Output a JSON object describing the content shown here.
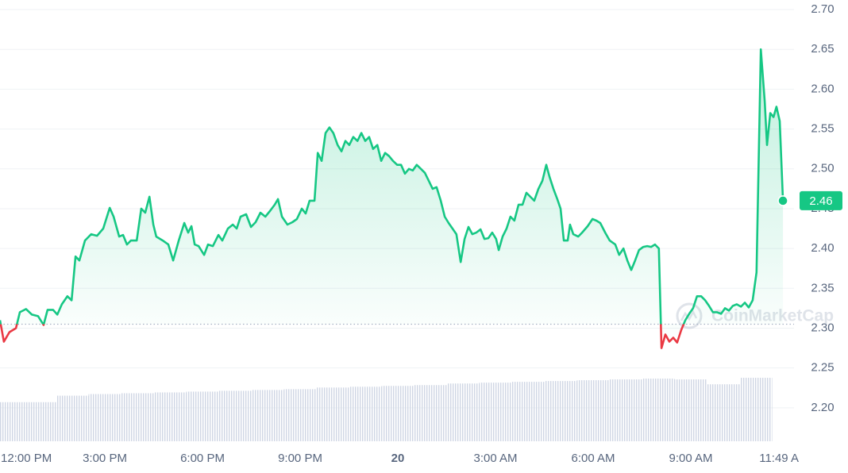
{
  "chart_data": {
    "type": "line",
    "x": [
      11.78,
      11.9,
      12.07,
      12.27,
      12.39,
      12.58,
      12.76,
      12.95,
      13.12,
      13.24,
      13.41,
      13.54,
      13.68,
      13.85,
      13.98,
      14.1,
      14.22,
      14.39,
      14.58,
      14.76,
      14.95,
      15.15,
      15.27,
      15.44,
      15.56,
      15.68,
      15.8,
      15.98,
      16.12,
      16.24,
      16.37,
      16.49,
      16.58,
      16.78,
      16.95,
      17.1,
      17.27,
      17.44,
      17.56,
      17.66,
      17.76,
      17.88,
      18.05,
      18.17,
      18.32,
      18.49,
      18.61,
      18.78,
      18.93,
      19.05,
      19.17,
      19.34,
      19.49,
      19.63,
      19.78,
      19.93,
      20.07,
      20.22,
      20.32,
      20.44,
      20.61,
      20.76,
      20.9,
      21.05,
      21.17,
      21.29,
      21.44,
      21.54,
      21.66,
      21.78,
      21.9,
      22.02,
      22.15,
      22.27,
      22.39,
      22.51,
      22.63,
      22.76,
      22.88,
      23.0,
      23.12,
      23.24,
      23.37,
      23.49,
      23.61,
      23.73,
      23.85,
      23.98,
      24.1,
      24.22,
      24.34,
      24.46,
      24.58,
      24.71,
      24.83,
      24.95,
      25.07,
      25.19,
      25.32,
      25.44,
      25.56,
      25.68,
      25.8,
      25.93,
      26.05,
      26.17,
      26.29,
      26.41,
      26.54,
      26.66,
      26.78,
      26.9,
      27.02,
      27.1,
      27.22,
      27.34,
      27.46,
      27.58,
      27.71,
      27.83,
      27.95,
      28.07,
      28.19,
      28.32,
      28.44,
      28.56,
      28.66,
      28.78,
      28.9,
      29.0,
      29.1,
      29.22,
      29.29,
      29.39,
      29.54,
      29.66,
      29.83,
      29.98,
      30.1,
      30.22,
      30.37,
      30.51,
      30.68,
      30.8,
      30.93,
      31.05,
      31.17,
      31.29,
      31.41,
      31.54,
      31.66,
      31.78,
      31.9,
      32.02,
      32.1,
      32.22,
      32.34,
      32.46,
      32.58,
      32.71,
      32.83,
      32.95,
      33.07,
      33.19,
      33.32,
      33.44,
      33.56,
      33.68,
      33.8,
      33.93,
      34.05,
      34.17,
      34.29,
      34.41,
      34.54,
      34.66,
      34.78,
      34.9,
      35.02,
      35.15,
      35.27,
      35.34,
      35.44,
      35.54,
      35.63,
      35.73,
      35.83
    ],
    "values": [
      2.31,
      2.283,
      2.295,
      2.3,
      2.32,
      2.324,
      2.317,
      2.315,
      2.304,
      2.323,
      2.323,
      2.317,
      2.33,
      2.34,
      2.335,
      2.39,
      2.385,
      2.41,
      2.418,
      2.416,
      2.425,
      2.451,
      2.44,
      2.415,
      2.417,
      2.405,
      2.41,
      2.41,
      2.45,
      2.445,
      2.465,
      2.43,
      2.415,
      2.41,
      2.405,
      2.385,
      2.41,
      2.432,
      2.42,
      2.428,
      2.405,
      2.403,
      2.392,
      2.405,
      2.403,
      2.417,
      2.41,
      2.425,
      2.43,
      2.425,
      2.44,
      2.443,
      2.427,
      2.433,
      2.445,
      2.44,
      2.447,
      2.455,
      2.462,
      2.44,
      2.43,
      2.433,
      2.437,
      2.45,
      2.444,
      2.46,
      2.46,
      2.52,
      2.51,
      2.545,
      2.552,
      2.545,
      2.53,
      2.522,
      2.535,
      2.53,
      2.54,
      2.535,
      2.545,
      2.535,
      2.54,
      2.525,
      2.53,
      2.51,
      2.52,
      2.516,
      2.51,
      2.505,
      2.505,
      2.494,
      2.5,
      2.498,
      2.505,
      2.5,
      2.495,
      2.485,
      2.475,
      2.477,
      2.46,
      2.44,
      2.432,
      2.425,
      2.418,
      2.383,
      2.412,
      2.427,
      2.418,
      2.42,
      2.424,
      2.412,
      2.413,
      2.42,
      2.412,
      2.398,
      2.415,
      2.425,
      2.44,
      2.435,
      2.455,
      2.455,
      2.47,
      2.465,
      2.46,
      2.475,
      2.485,
      2.505,
      2.49,
      2.475,
      2.462,
      2.45,
      2.41,
      2.41,
      2.43,
      2.418,
      2.415,
      2.42,
      2.428,
      2.437,
      2.435,
      2.432,
      2.42,
      2.41,
      2.405,
      2.392,
      2.4,
      2.385,
      2.373,
      2.385,
      2.398,
      2.402,
      2.403,
      2.402,
      2.405,
      2.4,
      2.275,
      2.292,
      2.283,
      2.288,
      2.282,
      2.298,
      2.31,
      2.318,
      2.325,
      2.34,
      2.34,
      2.335,
      2.328,
      2.32,
      2.32,
      2.318,
      2.325,
      2.322,
      2.328,
      2.33,
      2.327,
      2.332,
      2.326,
      2.335,
      2.37,
      2.65,
      2.585,
      2.53,
      2.57,
      2.565,
      2.578,
      2.56,
      2.46
    ],
    "color": "#16c784",
    "down_color": "#ea3943",
    "baseline": 2.305,
    "volume": {
      "x": [
        12,
        13,
        14,
        15,
        16,
        17,
        18,
        19,
        20,
        21,
        22,
        23,
        24,
        25,
        26,
        27,
        28,
        29,
        30,
        31,
        32,
        33,
        34,
        35
      ],
      "values": [
        48,
        48,
        56,
        58,
        59,
        60,
        61,
        62,
        63,
        64,
        66,
        67,
        68,
        69,
        71,
        72,
        73,
        74,
        75,
        76,
        77,
        76,
        70,
        78
      ],
      "color": "#cfd6e4"
    },
    "xlim": [
      11.78,
      36.17
    ],
    "xticks": [
      {
        "value": 12,
        "label": "12:00 PM"
      },
      {
        "value": 15,
        "label": "3:00 PM"
      },
      {
        "value": 18,
        "label": "6:00 PM"
      },
      {
        "value": 21,
        "label": "9:00 PM"
      },
      {
        "value": 24,
        "label": "20"
      },
      {
        "value": 27,
        "label": "3:00 AM"
      },
      {
        "value": 30,
        "label": "6:00 AM"
      },
      {
        "value": 33,
        "label": "9:00 AM"
      },
      {
        "value": 35.82,
        "label": "11:49 A"
      }
    ],
    "ylim": [
      2.158,
      2.712
    ],
    "yticks": [
      {
        "value": 2.2,
        "label": "2.20"
      },
      2.25,
      {
        "value": 2.3,
        "label": "2.30"
      },
      2.35,
      {
        "value": 2.4,
        "label": "2.40"
      },
      2.45,
      {
        "value": 2.5,
        "label": "2.50"
      },
      2.55,
      {
        "value": 2.6,
        "label": "2.60"
      },
      2.65,
      {
        "value": 2.7,
        "label": "2.70"
      }
    ],
    "grid": true,
    "watermark": "CoinMarketCap"
  }
}
